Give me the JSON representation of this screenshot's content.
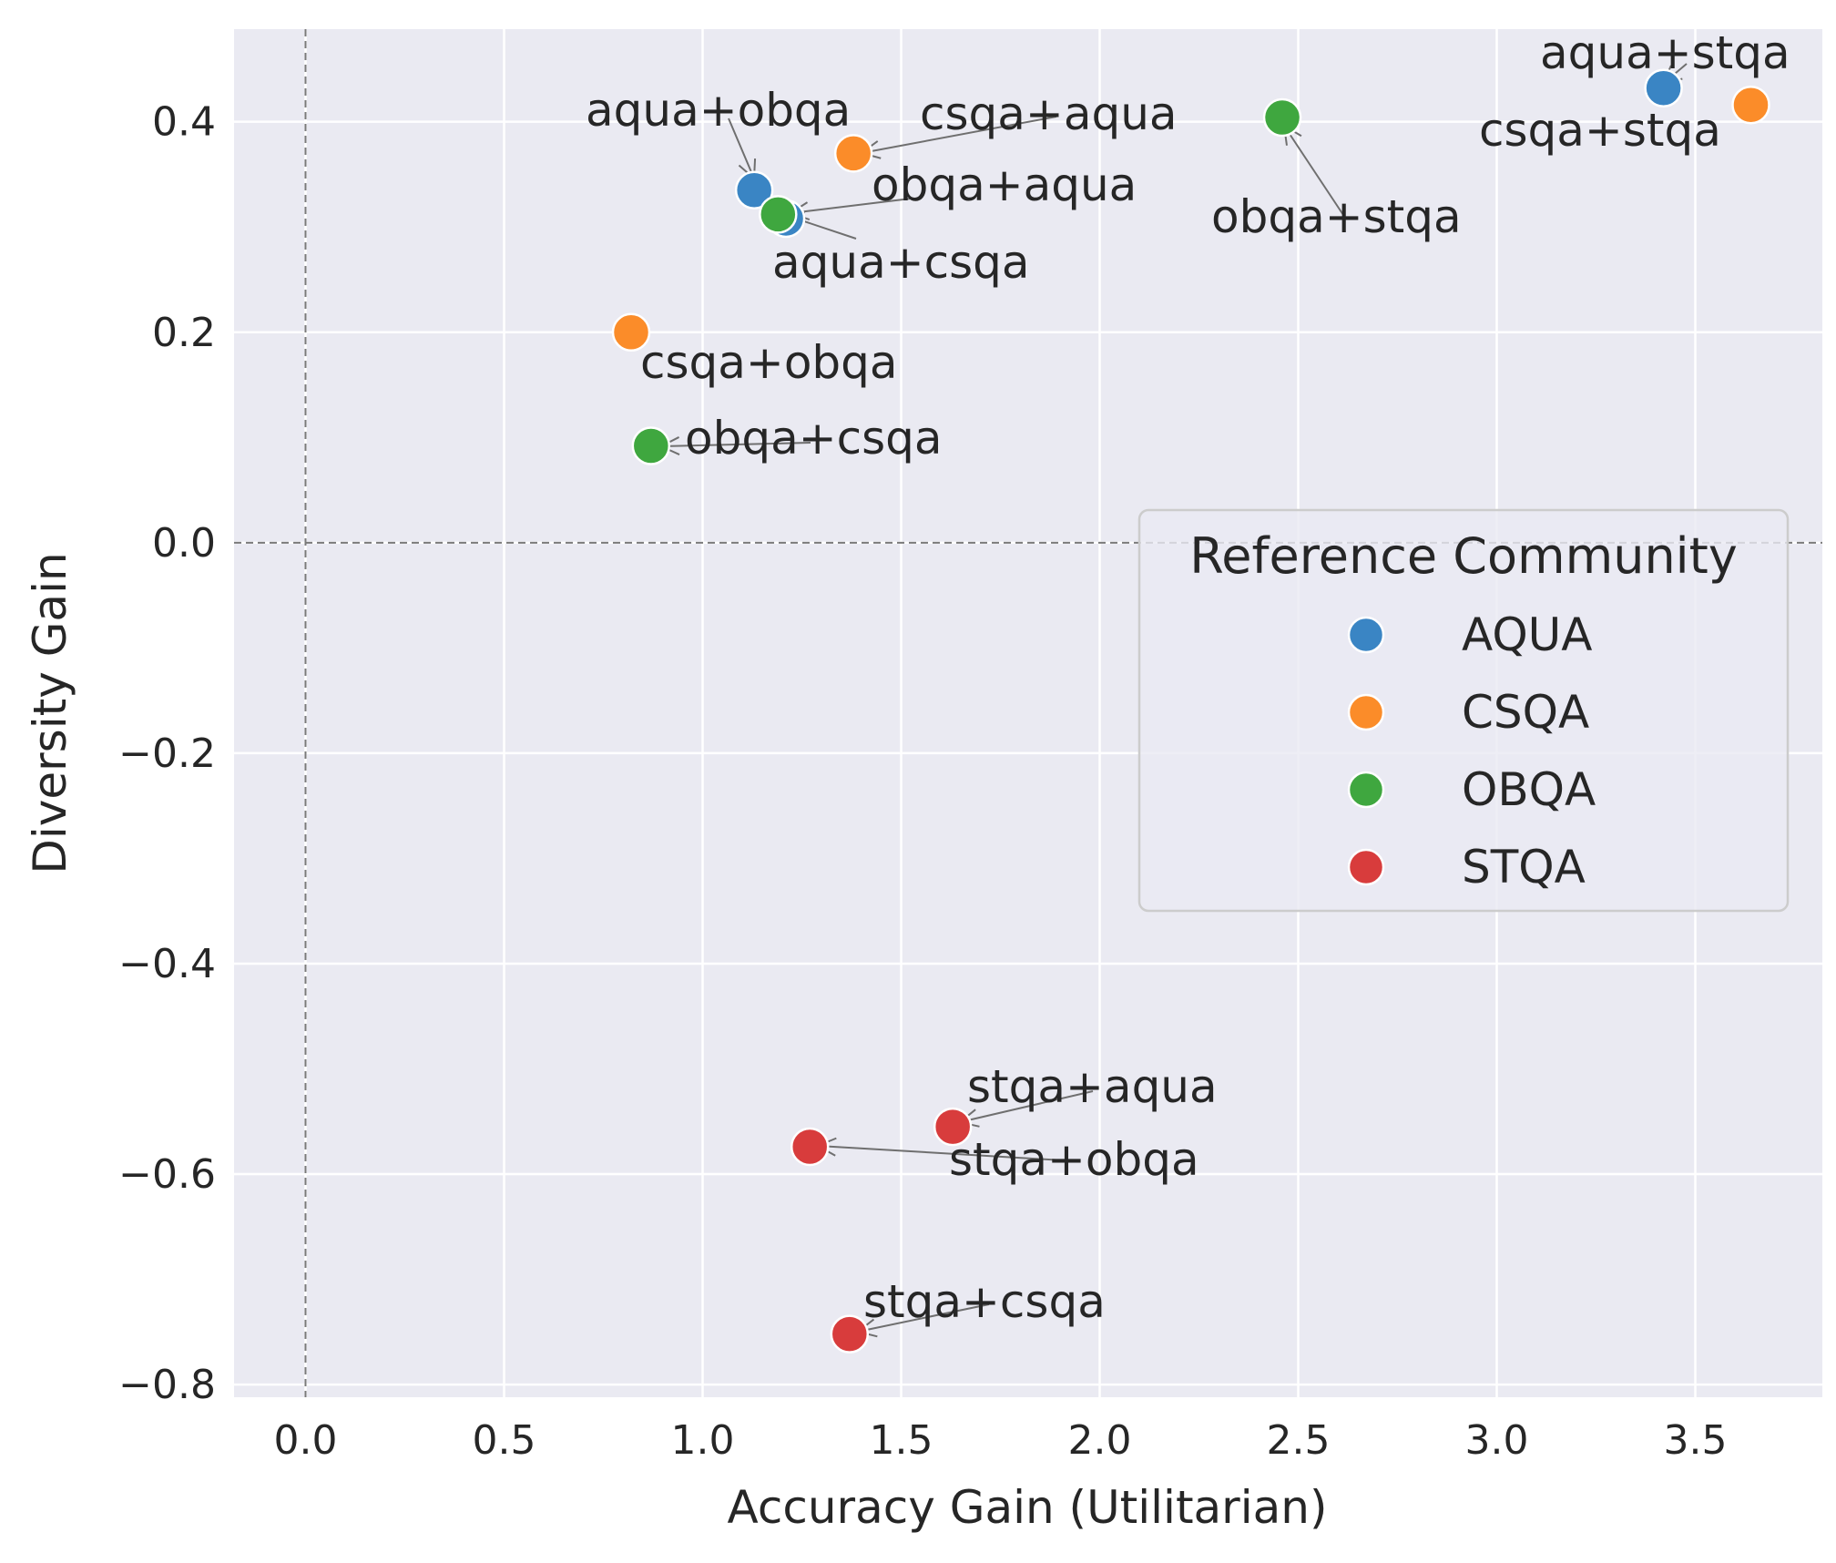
{
  "chart_data": {
    "type": "scatter",
    "title": "",
    "xlabel": "Accuracy Gain (Utilitarian)",
    "ylabel": "Diversity Gain",
    "xlim": [
      -0.18,
      3.82
    ],
    "ylim": [
      -0.812,
      0.488
    ],
    "xticks": [
      0.0,
      0.5,
      1.0,
      1.5,
      2.0,
      2.5,
      3.0,
      3.5
    ],
    "yticks": [
      -0.8,
      -0.6,
      -0.4,
      -0.2,
      0.0,
      0.2,
      0.4
    ],
    "xtick_labels": [
      "0.0",
      "0.5",
      "1.0",
      "1.5",
      "2.0",
      "2.5",
      "3.0",
      "3.5"
    ],
    "ytick_labels": [
      "−0.8",
      "−0.6",
      "−0.4",
      "−0.2",
      "0.0",
      "0.2",
      "0.4"
    ],
    "reference_lines": {
      "x": 0.0,
      "y": 0.0
    },
    "grid": true,
    "legend": {
      "title": "Reference Community",
      "position": "center-right",
      "entries": [
        {
          "name": "AQUA",
          "color": "#3a85c4"
        },
        {
          "name": "CSQA",
          "color": "#fb8c29"
        },
        {
          "name": "OBQA",
          "color": "#3fa73f"
        },
        {
          "name": "STQA",
          "color": "#d83c3c"
        }
      ]
    },
    "points": [
      {
        "label": "aqua+obqa",
        "community": "AQUA",
        "x": 1.13,
        "y": 0.335,
        "label_anchor": "upper-left",
        "arrow": true
      },
      {
        "label": "aqua+csqa",
        "community": "AQUA",
        "x": 1.21,
        "y": 0.308,
        "label_anchor": "lower-right",
        "arrow": true
      },
      {
        "label": "aqua+stqa",
        "community": "AQUA",
        "x": 3.42,
        "y": 0.432,
        "label_anchor": "upper",
        "arrow": true
      },
      {
        "label": "csqa+aqua",
        "community": "CSQA",
        "x": 1.38,
        "y": 0.37,
        "label_anchor": "upper-right",
        "arrow": true
      },
      {
        "label": "csqa+obqa",
        "community": "CSQA",
        "x": 0.82,
        "y": 0.2,
        "label_anchor": "lower-right",
        "arrow": false
      },
      {
        "label": "csqa+stqa",
        "community": "CSQA",
        "x": 3.64,
        "y": 0.416,
        "label_anchor": "lower-left",
        "arrow": false
      },
      {
        "label": "obqa+aqua",
        "community": "OBQA",
        "x": 1.19,
        "y": 0.312,
        "label_anchor": "right",
        "arrow": true
      },
      {
        "label": "obqa+csqa",
        "community": "OBQA",
        "x": 0.87,
        "y": 0.092,
        "label_anchor": "right",
        "arrow": true
      },
      {
        "label": "obqa+stqa",
        "community": "OBQA",
        "x": 2.46,
        "y": 0.404,
        "label_anchor": "lower-right",
        "arrow": true
      },
      {
        "label": "stqa+aqua",
        "community": "STQA",
        "x": 1.63,
        "y": -0.555,
        "label_anchor": "upper-right",
        "arrow": true
      },
      {
        "label": "stqa+obqa",
        "community": "STQA",
        "x": 1.27,
        "y": -0.574,
        "label_anchor": "lower-right",
        "arrow": true
      },
      {
        "label": "stqa+csqa",
        "community": "STQA",
        "x": 1.37,
        "y": -0.752,
        "label_anchor": "upper-right",
        "arrow": true
      }
    ]
  }
}
